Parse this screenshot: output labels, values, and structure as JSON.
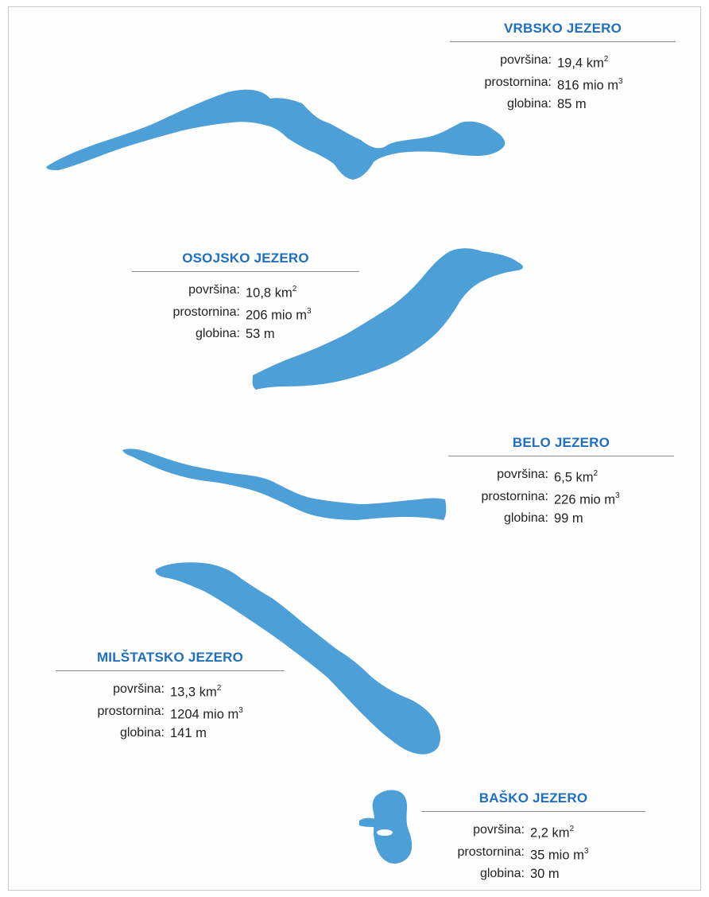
{
  "lakes": [
    {
      "name": "VRBSKO JEZERO",
      "area": "19,4 km",
      "area_sup": "2",
      "volume": "816 mio m",
      "volume_sup": "3",
      "depth": "85 m"
    },
    {
      "name": "OSOJSKO JEZERO",
      "area": "10,8 km",
      "area_sup": "2",
      "volume": "206 mio m",
      "volume_sup": "3",
      "depth": "53 m"
    },
    {
      "name": "BELO JEZERO",
      "area": "6,5 km",
      "area_sup": "2",
      "volume": "226 mio m",
      "volume_sup": "3",
      "depth": "99 m"
    },
    {
      "name": "MILŠTATSKO JEZERO",
      "area": "13,3 km",
      "area_sup": "2",
      "volume": "1204 mio m",
      "volume_sup": "3",
      "depth": "141 m"
    },
    {
      "name": "BAŠKO JEZERO",
      "area": "2,2 km",
      "area_sup": "2",
      "volume": "35 mio m",
      "volume_sup": "3",
      "depth": "30 m"
    }
  ],
  "labels": {
    "area": "površina:",
    "volume": "prostornina:",
    "depth": "globina:"
  },
  "colors": {
    "lake_fill": "#4d9fd8",
    "title": "#1f6fbf",
    "text": "#222222",
    "rule": "#8a8a8a"
  }
}
